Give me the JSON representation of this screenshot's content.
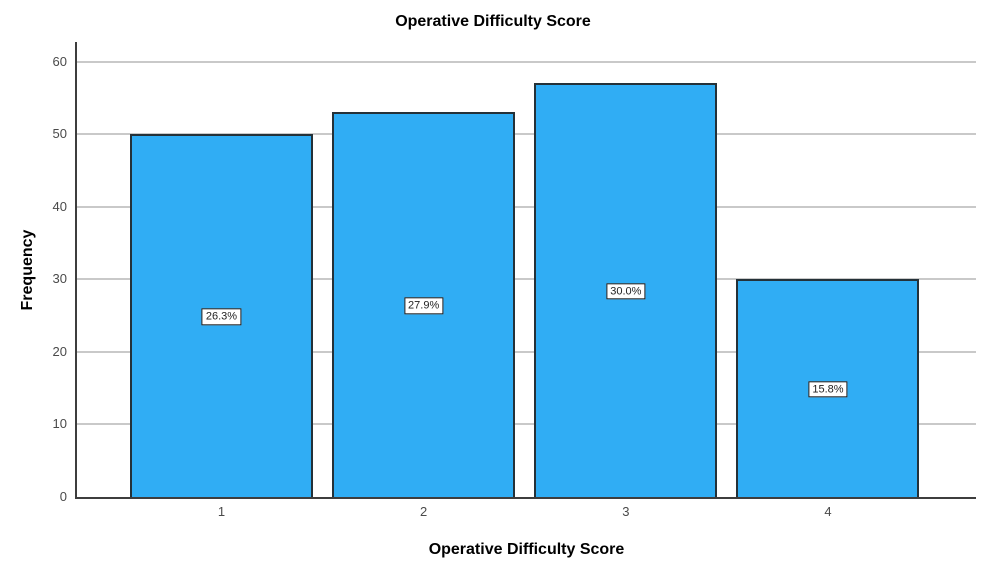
{
  "chart_data": {
    "type": "bar",
    "title": "Operative Difficulty Score",
    "xlabel": "Operative Difficulty Score",
    "ylabel": "Frequency",
    "categories": [
      "1",
      "2",
      "3",
      "4"
    ],
    "values": [
      50,
      53,
      57,
      30
    ],
    "bar_labels": [
      "26.3%",
      "27.9%",
      "30.0%",
      "15.8%"
    ],
    "yticks": [
      0,
      10,
      20,
      30,
      40,
      50,
      60
    ],
    "ylim": [
      0,
      62.7
    ],
    "grid": "horizontal",
    "legend": "none",
    "colors": {
      "bar_fill": "#30ADF4",
      "bar_border": "#243138",
      "gridline": "#c9c9c9",
      "axis": "#3d3d3d",
      "tick_label": "#4a4a4a",
      "title": "#000000",
      "label_box_bg": "#ffffff",
      "label_box_border": "#1a1a1a"
    }
  }
}
